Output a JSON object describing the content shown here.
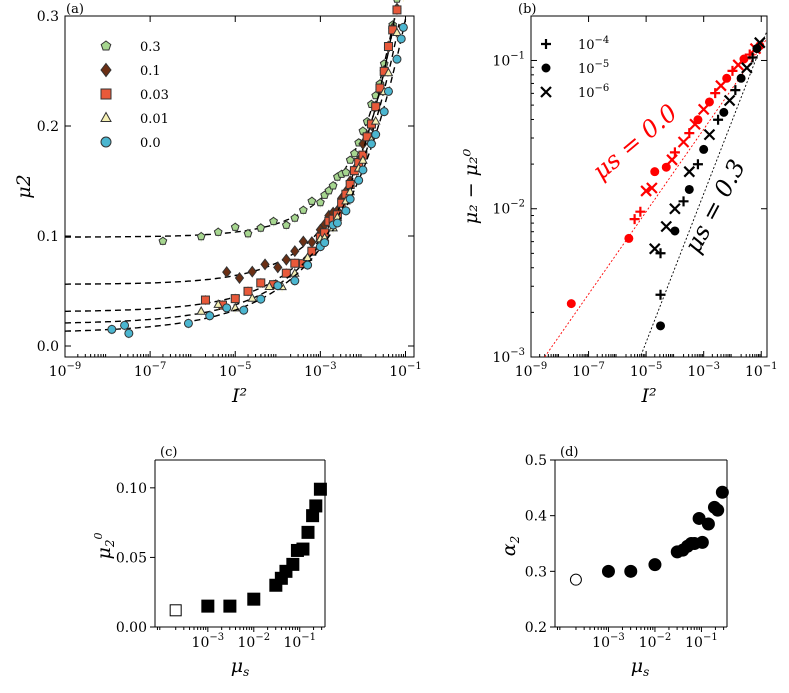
{
  "chart_data": [
    {
      "panel": "(a)",
      "type": "scatter",
      "xscale": "log",
      "xlim_exp": [
        -9,
        -0.8
      ],
      "xticks_exp": [
        -9,
        -7,
        -5,
        -3,
        -1
      ],
      "ylim": [
        -0.01,
        0.3
      ],
      "yticks": [
        0.0,
        0.1,
        0.2,
        0.3
      ],
      "ytick_labels": [
        "0.0",
        "0.1",
        "0.2",
        "0.3"
      ],
      "xlabel": "I^2",
      "ylabel": "μ2",
      "legend_position": "top-left",
      "series": [
        {
          "name": "0.3",
          "marker": "pentagon",
          "color": "#a6d68f",
          "mu0": 0.099,
          "c": 0.72,
          "alpha": 0.44,
          "xexp": [
            -6.7,
            -5.8,
            -5.4,
            -5.0,
            -4.7,
            -4.4,
            -4.1,
            -3.8,
            -3.6,
            -3.4,
            -3.2,
            -3.0,
            -2.8,
            -2.6,
            -2.4,
            -2.2,
            -2.0,
            -1.8,
            -1.6,
            -1.4,
            -1.2,
            -1.05
          ]
        },
        {
          "name": "0.1",
          "marker": "diamond",
          "color": "#6b2f14",
          "mu0": 0.056,
          "c": 0.76,
          "alpha": 0.395,
          "xexp": [
            -5.2,
            -4.9,
            -4.6,
            -4.3,
            -4.0,
            -3.8,
            -3.6,
            -3.4,
            -3.2,
            -3.0,
            -2.8,
            -2.6,
            -2.4,
            -2.2,
            -2.0,
            -1.8,
            -1.6,
            -1.4,
            -1.2,
            -1.05
          ]
        },
        {
          "name": "0.03",
          "marker": "square",
          "color": "#e8593a",
          "mu0": 0.031,
          "c": 0.72,
          "alpha": 0.345,
          "xexp": [
            -5.7,
            -5.3,
            -5.0,
            -4.7,
            -4.4,
            -4.1,
            -3.8,
            -3.6,
            -3.4,
            -3.2,
            -3.0,
            -2.8,
            -2.6,
            -2.4,
            -2.2,
            -2.0,
            -1.8,
            -1.6,
            -1.4,
            -1.2,
            -1.05
          ]
        },
        {
          "name": "0.01",
          "marker": "triangle",
          "color": "#f5f0b4",
          "mu0": 0.02,
          "c": 0.62,
          "alpha": 0.31,
          "xexp": [
            -5.8,
            -5.4,
            -5.0,
            -4.6,
            -4.2,
            -3.9,
            -3.6,
            -3.3,
            -3.0,
            -2.7,
            -2.4,
            -2.1,
            -1.8,
            -1.5,
            -1.2,
            -1.05
          ]
        },
        {
          "name": "0.0",
          "marker": "circle",
          "color": "#4bb6d0",
          "mu0": 0.012,
          "c": 0.55,
          "alpha": 0.285,
          "xexp": [
            -7.9,
            -7.6,
            -7.5,
            -6.1,
            -5.6,
            -5.2,
            -4.8,
            -4.4,
            -4.0,
            -3.6,
            -3.3,
            -3.0,
            -2.7,
            -2.4,
            -2.1,
            -1.8,
            -1.5,
            -1.2,
            -1.05
          ]
        }
      ]
    },
    {
      "panel": "(b)",
      "type": "scatter",
      "xscale": "log",
      "yscale": "log",
      "xlim_exp": [
        -9,
        -0.8
      ],
      "ylim_exp": [
        -3,
        -0.7
      ],
      "xticks_exp": [
        -9,
        -7,
        -5,
        -3,
        -1
      ],
      "yticks_exp": [
        -3,
        -2,
        -1
      ],
      "xlabel": "I^2",
      "ylabel": "μ2 − μ2^0",
      "legend": [
        "10^-4",
        "10^-5",
        "10^-6"
      ],
      "legend_markers": [
        "plus",
        "circle",
        "x"
      ],
      "annotations": [
        "μs = 0.0",
        "μs = 0.3"
      ],
      "groups": [
        {
          "name": "μs = 0.0",
          "color": "#ff0000",
          "points": [
            {
              "m": "circle",
              "x": -7.6,
              "y": -2.64
            },
            {
              "m": "circle",
              "x": -5.6,
              "y": -2.2
            },
            {
              "m": "plus",
              "x": -5.4,
              "y": -2.07
            },
            {
              "m": "plus",
              "x": -5.2,
              "y": -2.02
            },
            {
              "m": "x",
              "x": -5.0,
              "y": -1.88
            },
            {
              "m": "x",
              "x": -4.8,
              "y": -1.86
            },
            {
              "m": "circle",
              "x": -4.7,
              "y": -1.75
            },
            {
              "m": "circle",
              "x": -4.3,
              "y": -1.72
            },
            {
              "m": "x",
              "x": -4.1,
              "y": -1.67
            },
            {
              "m": "plus",
              "x": -4.0,
              "y": -1.62
            },
            {
              "m": "x",
              "x": -3.7,
              "y": -1.55
            },
            {
              "m": "plus",
              "x": -3.5,
              "y": -1.49
            },
            {
              "m": "x",
              "x": -3.3,
              "y": -1.43
            },
            {
              "m": "circle",
              "x": -3.2,
              "y": -1.4
            },
            {
              "m": "x",
              "x": -3.0,
              "y": -1.33
            },
            {
              "m": "circle",
              "x": -2.8,
              "y": -1.28
            },
            {
              "m": "plus",
              "x": -2.6,
              "y": -1.22
            },
            {
              "m": "x",
              "x": -2.4,
              "y": -1.17
            },
            {
              "m": "circle",
              "x": -2.2,
              "y": -1.12
            },
            {
              "m": "plus",
              "x": -2.0,
              "y": -1.07
            },
            {
              "m": "x",
              "x": -1.8,
              "y": -1.03
            },
            {
              "m": "circle",
              "x": -1.6,
              "y": -0.99
            },
            {
              "m": "plus",
              "x": -1.4,
              "y": -0.96
            },
            {
              "m": "x",
              "x": -1.2,
              "y": -0.92
            },
            {
              "m": "circle",
              "x": -1.05,
              "y": -0.9
            }
          ]
        },
        {
          "name": "μs = 0.3",
          "color": "#000000",
          "points": [
            {
              "m": "circle",
              "x": -4.5,
              "y": -2.79
            },
            {
              "m": "plus",
              "x": -4.5,
              "y": -2.58
            },
            {
              "m": "x",
              "x": -4.7,
              "y": -2.27
            },
            {
              "m": "plus",
              "x": -4.5,
              "y": -2.3
            },
            {
              "m": "x",
              "x": -4.3,
              "y": -2.12
            },
            {
              "m": "circle",
              "x": -4.0,
              "y": -2.15
            },
            {
              "m": "x",
              "x": -4.0,
              "y": -2.0
            },
            {
              "m": "plus",
              "x": -3.7,
              "y": -1.95
            },
            {
              "m": "circle",
              "x": -3.5,
              "y": -1.87
            },
            {
              "m": "x",
              "x": -3.5,
              "y": -1.75
            },
            {
              "m": "plus",
              "x": -3.2,
              "y": -1.7
            },
            {
              "m": "circle",
              "x": -3.0,
              "y": -1.6
            },
            {
              "m": "x",
              "x": -2.8,
              "y": -1.5
            },
            {
              "m": "plus",
              "x": -2.5,
              "y": -1.4
            },
            {
              "m": "circle",
              "x": -2.3,
              "y": -1.35
            },
            {
              "m": "x",
              "x": -2.1,
              "y": -1.27
            },
            {
              "m": "plus",
              "x": -1.9,
              "y": -1.2
            },
            {
              "m": "circle",
              "x": -1.7,
              "y": -1.12
            },
            {
              "m": "x",
              "x": -1.5,
              "y": -1.05
            },
            {
              "m": "plus",
              "x": -1.3,
              "y": -0.98
            },
            {
              "m": "circle",
              "x": -1.15,
              "y": -0.92
            },
            {
              "m": "x",
              "x": -1.05,
              "y": -0.88
            }
          ]
        }
      ],
      "fit_lines": [
        {
          "color": "#ff0000",
          "slope": 0.278,
          "intercept": -0.63,
          "style": "dotted"
        },
        {
          "color": "#000000",
          "slope": 0.5,
          "intercept": -0.4,
          "style": "dotted"
        }
      ]
    },
    {
      "panel": "(c)",
      "type": "scatter",
      "xscale": "log",
      "xlim_exp": [
        -4.15,
        -0.45
      ],
      "xticks_exp": [
        -3,
        -2,
        -1
      ],
      "ylim": [
        0.0,
        0.12
      ],
      "yticks": [
        0.0,
        0.05,
        0.1
      ],
      "ytick_labels": [
        "0.00",
        "0.05",
        "0.10"
      ],
      "xlabel": "μs",
      "ylabel": "μ2^0",
      "marker": "square",
      "points": [
        {
          "x": -3.0,
          "y": 0.015
        },
        {
          "x": -2.52,
          "y": 0.015
        },
        {
          "x": -2.0,
          "y": 0.02
        },
        {
          "x": -1.52,
          "y": 0.03
        },
        {
          "x": -1.4,
          "y": 0.035
        },
        {
          "x": -1.3,
          "y": 0.04
        },
        {
          "x": -1.15,
          "y": 0.045
        },
        {
          "x": -1.05,
          "y": 0.055
        },
        {
          "x": -0.93,
          "y": 0.056
        },
        {
          "x": -0.82,
          "y": 0.068
        },
        {
          "x": -0.72,
          "y": 0.08
        },
        {
          "x": -0.65,
          "y": 0.087
        },
        {
          "x": -0.55,
          "y": 0.099
        }
      ],
      "open_point": {
        "x": -3.7,
        "y": 0.012
      }
    },
    {
      "panel": "(d)",
      "type": "scatter",
      "xscale": "log",
      "xlim_exp": [
        -4.15,
        -0.45
      ],
      "xticks_exp": [
        -3,
        -2,
        -1
      ],
      "ylim": [
        0.2,
        0.5
      ],
      "yticks": [
        0.2,
        0.3,
        0.4,
        0.5
      ],
      "ytick_labels": [
        "0.2",
        "0.3",
        "0.4",
        "0.5"
      ],
      "xlabel": "μs",
      "ylabel": "α2",
      "marker": "circle",
      "points": [
        {
          "x": -3.0,
          "y": 0.3
        },
        {
          "x": -2.52,
          "y": 0.3
        },
        {
          "x": -2.0,
          "y": 0.312
        },
        {
          "x": -1.52,
          "y": 0.335
        },
        {
          "x": -1.4,
          "y": 0.338
        },
        {
          "x": -1.3,
          "y": 0.345
        },
        {
          "x": -1.22,
          "y": 0.35
        },
        {
          "x": -1.15,
          "y": 0.35
        },
        {
          "x": -1.05,
          "y": 0.395
        },
        {
          "x": -0.98,
          "y": 0.352
        },
        {
          "x": -0.85,
          "y": 0.385
        },
        {
          "x": -0.72,
          "y": 0.415
        },
        {
          "x": -0.65,
          "y": 0.41
        },
        {
          "x": -0.55,
          "y": 0.442
        }
      ],
      "open_point": {
        "x": -3.7,
        "y": 0.285
      }
    }
  ]
}
